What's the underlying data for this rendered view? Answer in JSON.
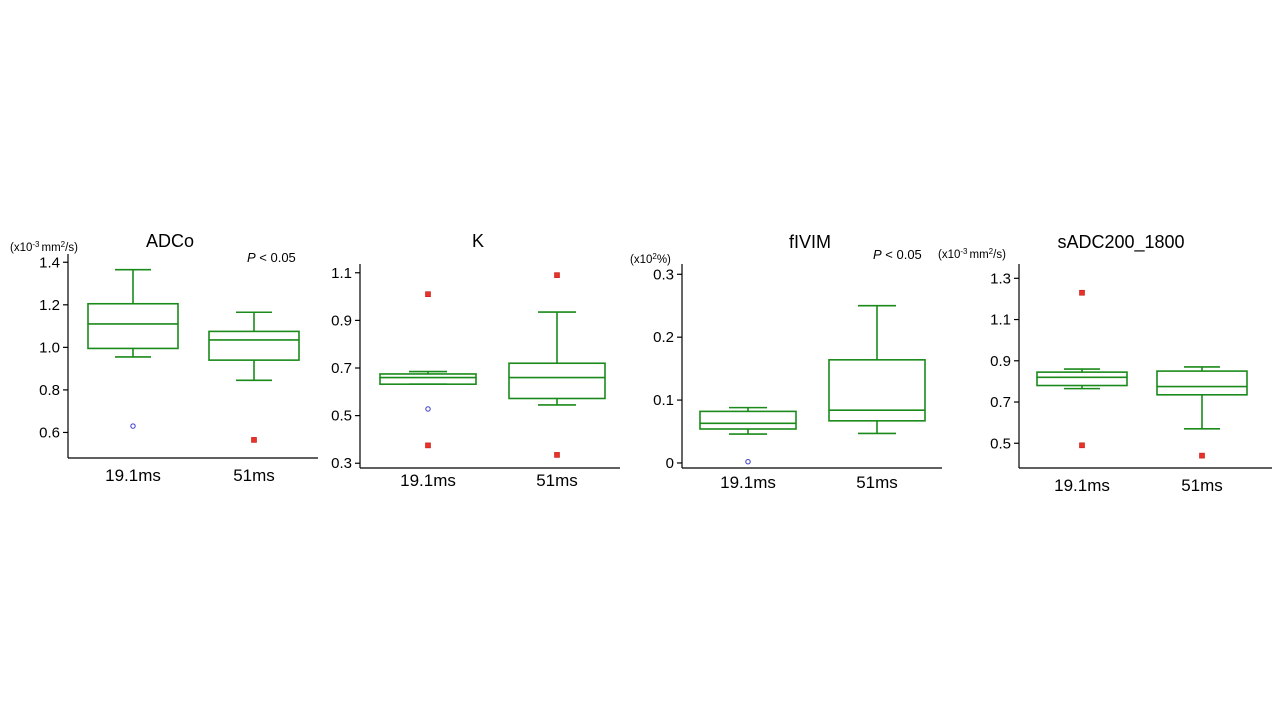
{
  "page": {
    "background": "#ffffff"
  },
  "colors": {
    "box": "#1a8a1a",
    "outlier_far": "#e8322a",
    "outlier_near": "#3a3acb",
    "axis": "#000000"
  },
  "chart_data": [
    {
      "type": "box",
      "title": "ADCo",
      "unit_label": {
        "pre": "(x10",
        "sup": "-3",
        "mid": "mm",
        "sup2": "2",
        "post": "/s)"
      },
      "p_value": {
        "italic": "P",
        "rest": " < 0.05"
      },
      "ylim": [
        0.48,
        1.42
      ],
      "yticks": [
        0.6,
        0.8,
        1.0,
        1.2,
        1.4
      ],
      "ytick_labels": [
        "0.6",
        "0.8",
        "1.0",
        "1.2",
        "1.4"
      ],
      "categories": [
        "19.1ms",
        "51ms"
      ],
      "boxes": [
        {
          "whisker_low": 0.955,
          "q1": 0.995,
          "median": 1.11,
          "q3": 1.205,
          "whisker_high": 1.365,
          "outliers": [
            {
              "y": 0.63,
              "kind": "near"
            }
          ]
        },
        {
          "whisker_low": 0.845,
          "q1": 0.94,
          "median": 1.035,
          "q3": 1.075,
          "whisker_high": 1.165,
          "outliers": [
            {
              "y": 0.565,
              "kind": "far"
            }
          ]
        }
      ]
    },
    {
      "type": "box",
      "title": "K",
      "unit_label": null,
      "p_value": null,
      "ylim": [
        0.28,
        1.12
      ],
      "yticks": [
        0.3,
        0.5,
        0.7,
        0.9,
        1.1
      ],
      "ytick_labels": [
        "0.3",
        "0.5",
        "0.7",
        "0.9",
        "1.1"
      ],
      "categories": [
        "19.1ms",
        "51ms"
      ],
      "boxes": [
        {
          "whisker_low": 0.632,
          "q1": 0.632,
          "median": 0.66,
          "q3": 0.675,
          "whisker_high": 0.685,
          "outliers": [
            {
              "y": 1.01,
              "kind": "far"
            },
            {
              "y": 0.528,
              "kind": "near"
            },
            {
              "y": 0.375,
              "kind": "far"
            }
          ]
        },
        {
          "whisker_low": 0.545,
          "q1": 0.572,
          "median": 0.66,
          "q3": 0.72,
          "whisker_high": 0.935,
          "outliers": [
            {
              "y": 1.09,
              "kind": "far"
            },
            {
              "y": 0.335,
              "kind": "far"
            }
          ]
        }
      ]
    },
    {
      "type": "box",
      "title": "fIVIM",
      "unit_label": {
        "pre": "(x10",
        "sup": "2",
        "mid": "%)",
        "sup2": "",
        "post": ""
      },
      "p_value": {
        "italic": "P",
        "rest": " < 0.05"
      },
      "ylim": [
        -0.008,
        0.31
      ],
      "yticks": [
        0,
        0.1,
        0.2,
        0.3
      ],
      "ytick_labels": [
        "0",
        "0.1",
        "0.2",
        "0.3"
      ],
      "categories": [
        "19.1ms",
        "51ms"
      ],
      "boxes": [
        {
          "whisker_low": 0.046,
          "q1": 0.054,
          "median": 0.063,
          "q3": 0.082,
          "whisker_high": 0.088,
          "outliers": [
            {
              "y": 0.002,
              "kind": "near"
            }
          ]
        },
        {
          "whisker_low": 0.047,
          "q1": 0.067,
          "median": 0.084,
          "q3": 0.164,
          "whisker_high": 0.25,
          "outliers": []
        }
      ]
    },
    {
      "type": "box",
      "title": "sADC200_1800",
      "unit_label": {
        "pre": "(x10",
        "sup": "-3",
        "mid": "mm",
        "sup2": "2",
        "post": "/s)"
      },
      "p_value": null,
      "ylim": [
        0.38,
        1.35
      ],
      "yticks": [
        0.5,
        0.7,
        0.9,
        1.1,
        1.3
      ],
      "ytick_labels": [
        "0.5",
        "0.7",
        "0.9",
        "1.1",
        "1.3"
      ],
      "categories": [
        "19.1ms",
        "51ms"
      ],
      "boxes": [
        {
          "whisker_low": 0.765,
          "q1": 0.78,
          "median": 0.82,
          "q3": 0.845,
          "whisker_high": 0.86,
          "outliers": [
            {
              "y": 1.23,
              "kind": "far"
            },
            {
              "y": 0.49,
              "kind": "far"
            }
          ]
        },
        {
          "whisker_low": 0.57,
          "q1": 0.735,
          "median": 0.775,
          "q3": 0.85,
          "whisker_high": 0.87,
          "outliers": [
            {
              "y": 0.44,
              "kind": "far"
            }
          ]
        }
      ]
    }
  ]
}
